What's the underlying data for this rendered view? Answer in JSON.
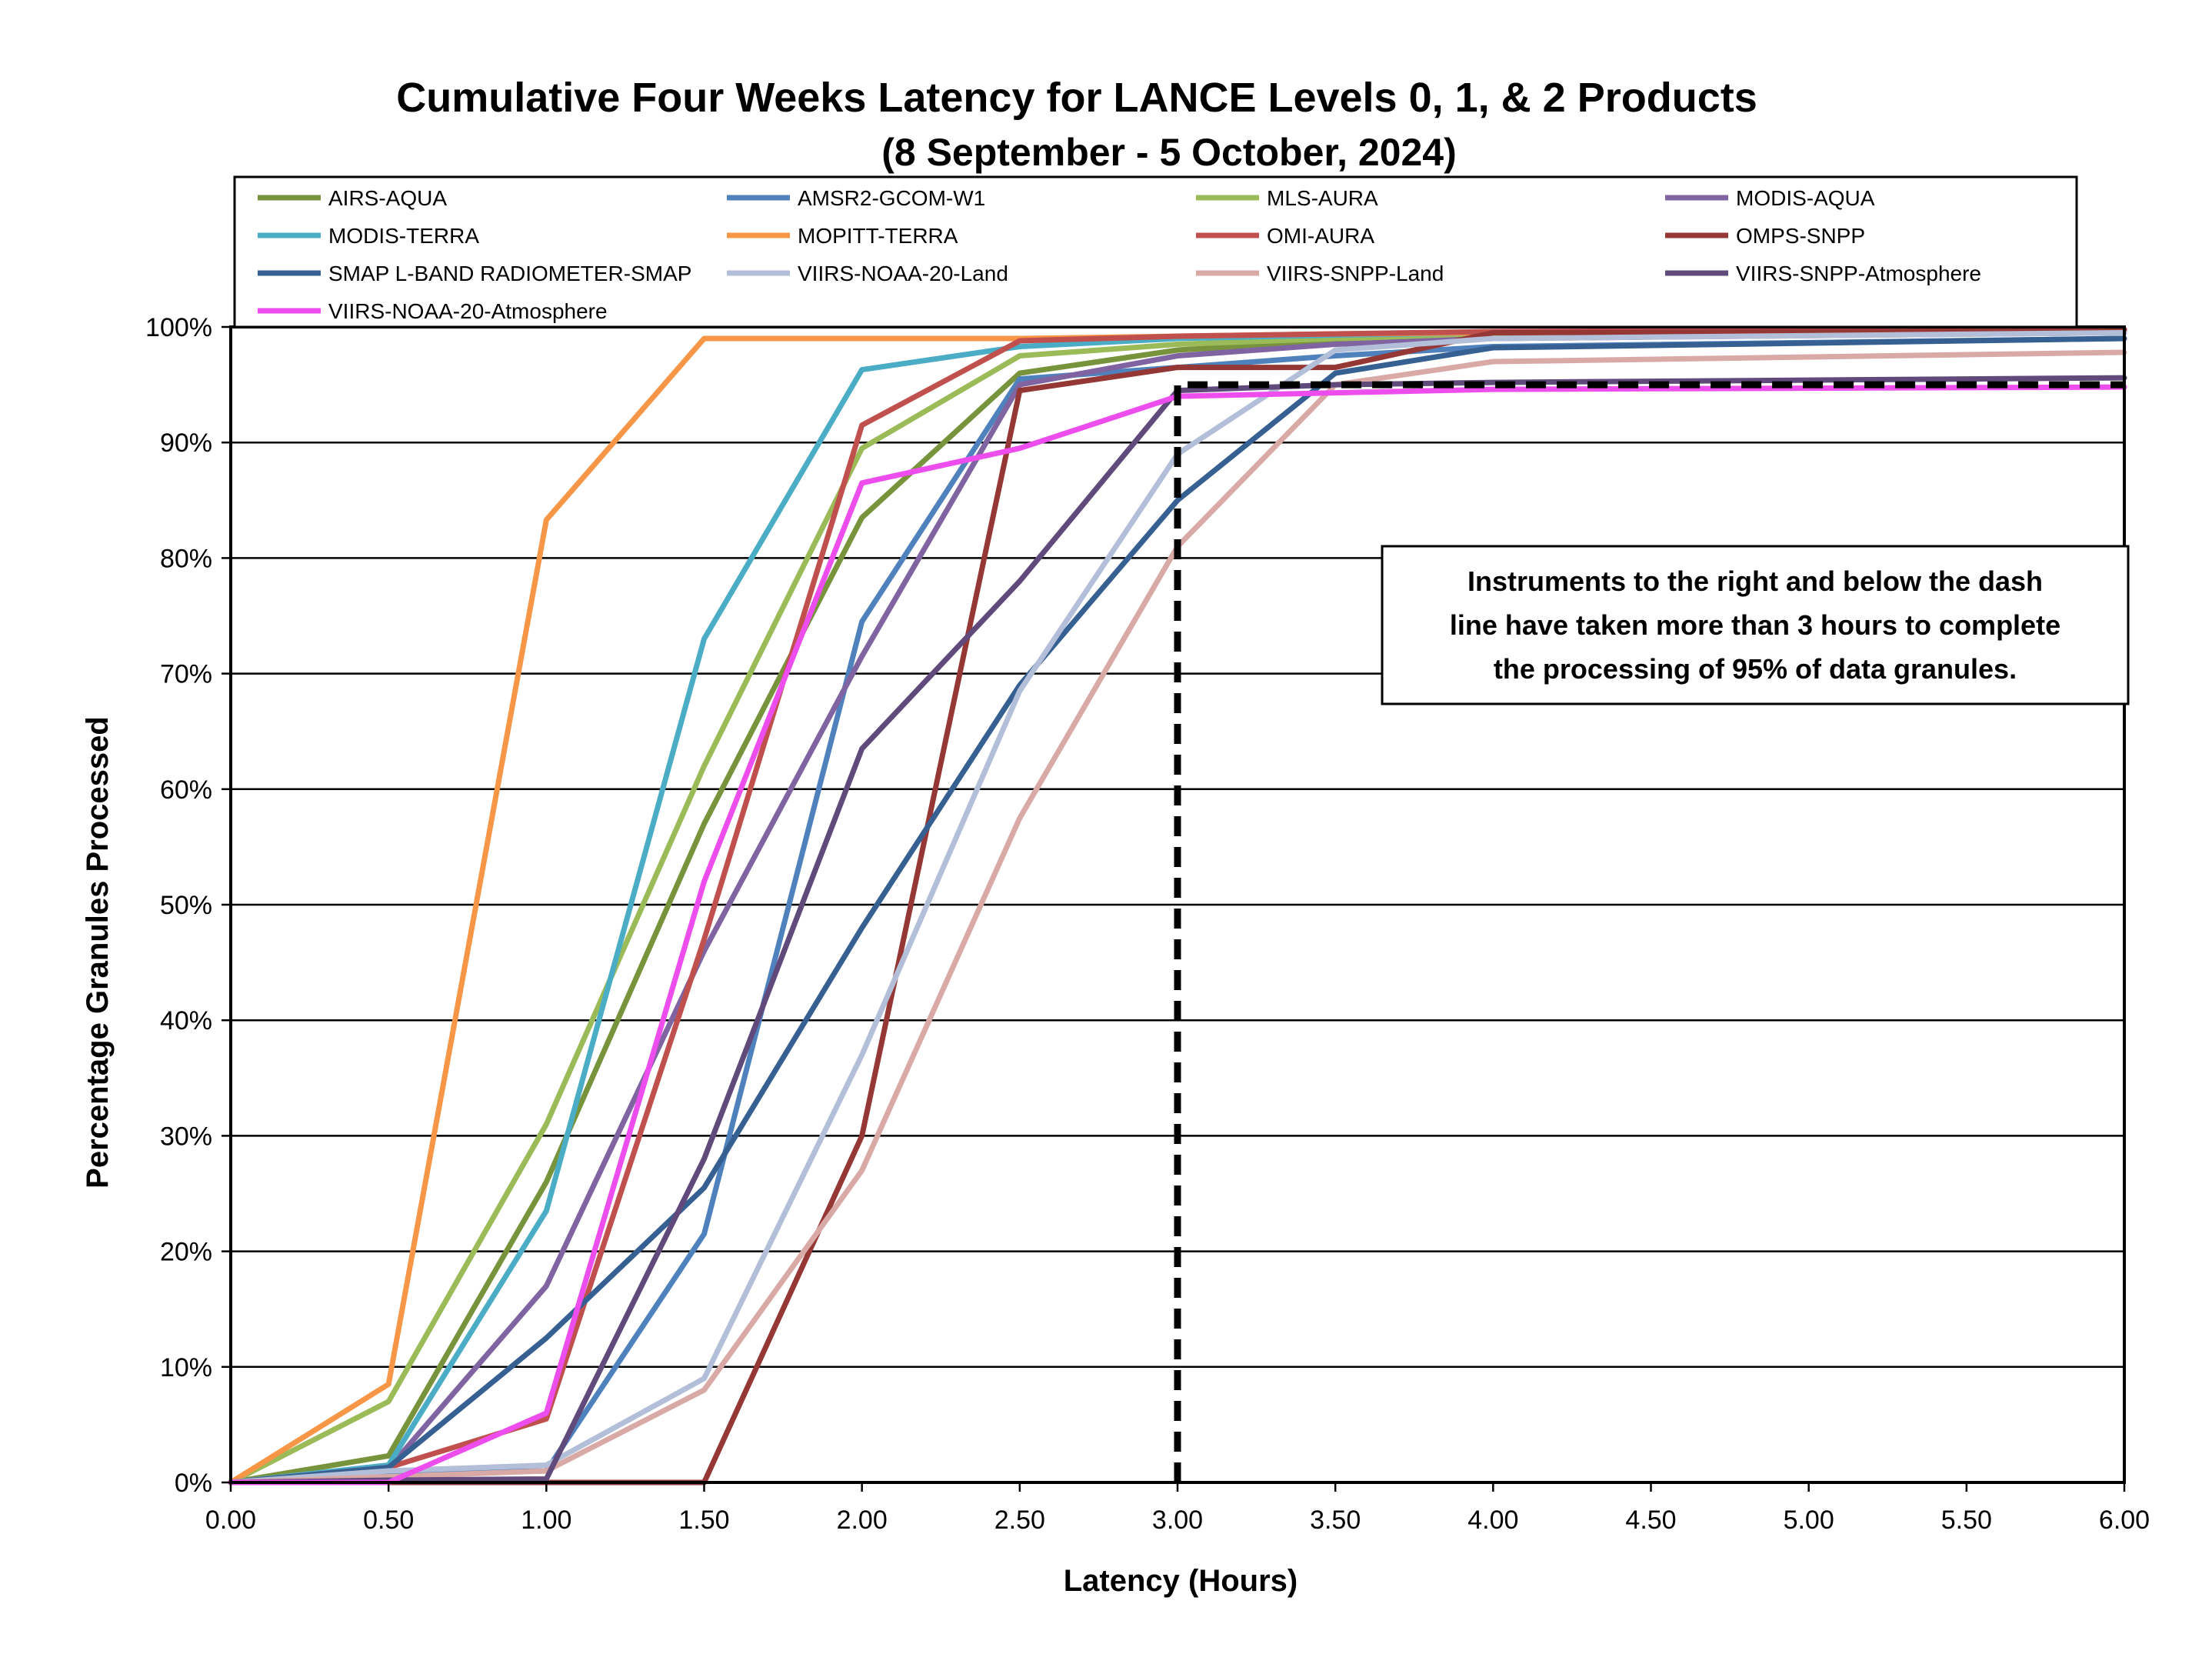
{
  "chart_data": {
    "type": "line",
    "title": "Cumulative Four Weeks Latency  for LANCE Levels 0, 1, & 2 Products",
    "subtitle": "(8  September   -  5  October,  2024)",
    "xlabel": "Latency (Hours)",
    "ylabel": "Percentage Granules Processed",
    "xlim": [
      0,
      6
    ],
    "ylim": [
      0,
      100
    ],
    "x_ticks": [
      "0.00",
      "0.50",
      "1.00",
      "1.50",
      "2.00",
      "2.50",
      "3.00",
      "3.50",
      "4.00",
      "4.50",
      "5.00",
      "5.50",
      "6.00"
    ],
    "y_ticks": [
      "0%",
      "10%",
      "20%",
      "30%",
      "40%",
      "50%",
      "60%",
      "70%",
      "80%",
      "90%",
      "100%"
    ],
    "grid": "horizontal",
    "legend_position": "top",
    "x": [
      0,
      0.5,
      1,
      1.5,
      2,
      2.5,
      3,
      3.5,
      4,
      6
    ],
    "series": [
      {
        "name": "AIRS-AQUA",
        "color": "#77933c",
        "values": [
          0,
          2.3,
          26,
          57,
          83.5,
          96,
          98,
          98.8,
          99.3,
          99.7
        ]
      },
      {
        "name": "AMSR2-GCOM-W1",
        "color": "#4f81bd",
        "values": [
          0,
          0.8,
          1,
          21.5,
          74.5,
          95.5,
          96.5,
          97.5,
          98.3,
          99
        ]
      },
      {
        "name": "MLS-AURA",
        "color": "#9bbb59",
        "values": [
          0,
          7,
          31,
          62,
          89.5,
          97.5,
          98.5,
          99,
          99.3,
          99.6
        ]
      },
      {
        "name": "MODIS-AQUA",
        "color": "#8064a2",
        "values": [
          0,
          1.2,
          17,
          46,
          71.5,
          95,
          97.5,
          98.5,
          99,
          99.5
        ]
      },
      {
        "name": "MODIS-TERRA",
        "color": "#4bacc6",
        "values": [
          0,
          1.5,
          23.5,
          73,
          96.3,
          98.3,
          99,
          99.3,
          99.5,
          99.8
        ]
      },
      {
        "name": "MOPITT-TERRA",
        "color": "#f79646",
        "values": [
          0,
          8.5,
          83.3,
          99,
          99,
          99,
          99.2,
          99.4,
          99.5,
          99.7
        ]
      },
      {
        "name": "OMI-AURA",
        "color": "#c0504d",
        "values": [
          0,
          1.3,
          5.5,
          47,
          91.5,
          98.8,
          99.2,
          99.4,
          99.6,
          99.8
        ]
      },
      {
        "name": "OMPS-SNPP",
        "color": "#953735",
        "values": [
          0,
          0,
          0,
          0,
          30,
          94.5,
          96.5,
          96.5,
          99.5,
          99.7
        ]
      },
      {
        "name": "SMAP L-BAND RADIOMETER-SMAP",
        "color": "#366092",
        "values": [
          0,
          1.3,
          12.5,
          25.5,
          48,
          69,
          85,
          96,
          98.2,
          99
        ]
      },
      {
        "name": "VIIRS-NOAA-20-Land",
        "color": "#b3bfd8",
        "values": [
          0,
          1,
          1.5,
          9,
          37,
          68.5,
          89,
          98,
          99,
          99.5
        ]
      },
      {
        "name": "VIIRS-SNPP-Land",
        "color": "#d9a9a6",
        "values": [
          0,
          0.5,
          1,
          8,
          27,
          57.5,
          81,
          95,
          97,
          97.8
        ]
      },
      {
        "name": "VIIRS-SNPP-Atmosphere",
        "color": "#604a7b",
        "values": [
          0,
          0.2,
          0.3,
          28,
          63.5,
          78,
          94.5,
          95,
          95.2,
          95.6
        ]
      },
      {
        "name": "VIIRS-NOAA-20-Atmosphere",
        "color": "#ee4dee",
        "values": [
          0,
          0,
          6,
          52,
          86.5,
          89.5,
          94,
          94.3,
          94.6,
          94.8
        ]
      }
    ],
    "threshold": {
      "x": 3,
      "y": 95,
      "color": "#000000"
    },
    "annotation": [
      "Instruments to the right and below the dash",
      "line have taken more than 3 hours to complete",
      "the processing of 95% of data granules."
    ]
  }
}
